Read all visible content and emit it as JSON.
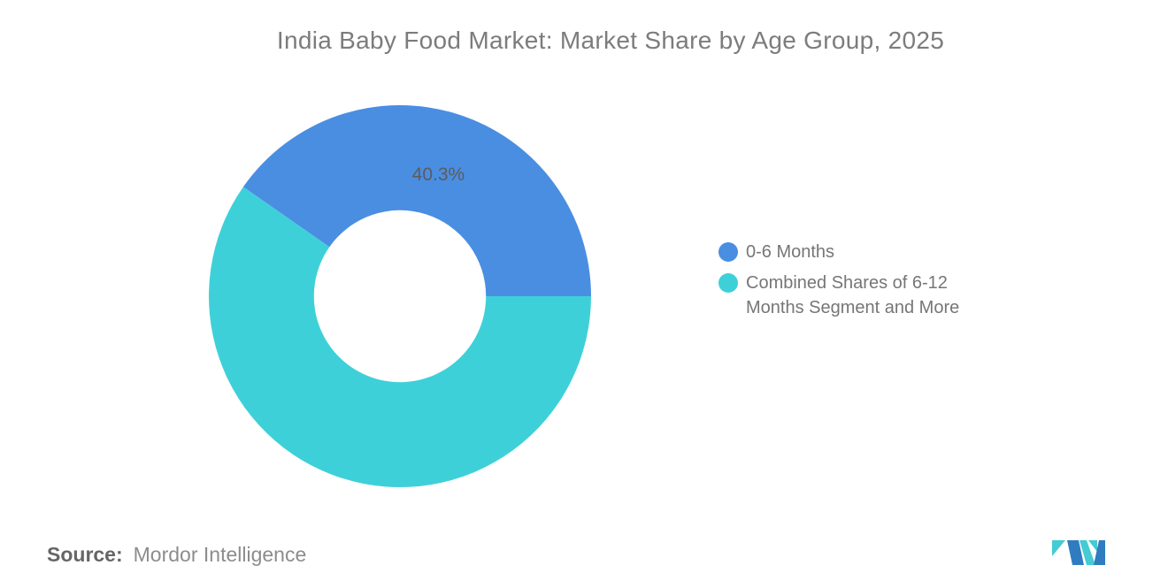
{
  "title": "India Baby Food Market: Market Share by Age Group, 2025",
  "chart_data": {
    "type": "pie",
    "subtype": "donut",
    "title": "India Baby Food Market: Market Share by Age Group, 2025",
    "series": [
      {
        "name": "0-6 Months",
        "value": 40.3,
        "color": "#4a8ee2",
        "data_label": "40.3%"
      },
      {
        "name": "Combined Shares of 6-12 Months Segment and More",
        "value": 59.7,
        "color": "#3ed0d9",
        "data_label": ""
      }
    ],
    "start_angle_deg": 0,
    "direction": "counterclockwise",
    "inner_radius_ratio": 0.45,
    "data_label_color": "#5c5c5c",
    "legend_position": "right",
    "background": "#ffffff"
  },
  "footer": {
    "source_label": "Source:",
    "source_value": "Mordor Intelligence",
    "logo_name": "mordor-intelligence-logo",
    "logo_colors": {
      "blue": "#2f7cc1",
      "teal": "#44cbd3"
    }
  }
}
